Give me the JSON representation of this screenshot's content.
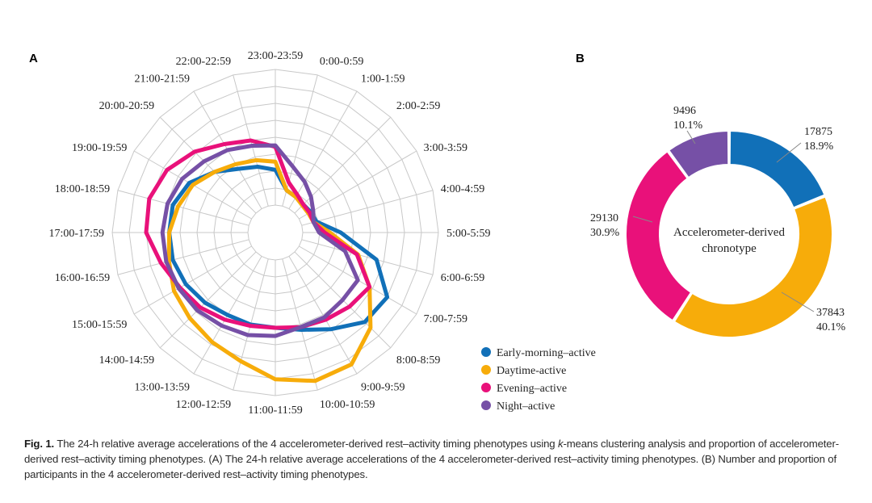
{
  "panel_a_letter": "A",
  "panel_b_letter": "B",
  "caption": {
    "label": "Fig. 1.",
    "text_part1": " The 24-h relative average accelerations of the 4 accelerometer-derived rest–activity timing phenotypes using ",
    "text_italic": "k",
    "text_part2": "-means clustering analysis and proportion of accelerometer-derived rest–activity timing phenotypes. (A) The 24-h relative average accelerations of the 4 accelerometer-derived rest–activity timing phenotypes. (B) Number and proportion of participants in the 4 accelerometer-derived rest–activity timing phenotypes."
  },
  "chart_data": [
    {
      "type": "radar",
      "categories": [
        "0:00-0:59",
        "1:00-1:59",
        "2:00-2:59",
        "3:00-3:59",
        "4:00-4:59",
        "5:00-5:59",
        "6:00-6:59",
        "7:00-7:59",
        "8:00-8:59",
        "9:00-9:59",
        "10:00-10:59",
        "11:00-11:59",
        "12:00-12:59",
        "13:00-13:59",
        "14:00-14:59",
        "15:00-15:59",
        "16:00-16:59",
        "17:00-17:59",
        "18:00-18:59",
        "19:00-19:59",
        "20:00-20:59",
        "21:00-21:59",
        "22:00-22:59",
        "23:00-23:59"
      ],
      "rlim": [
        0,
        1
      ],
      "rings": 8,
      "grid": true,
      "legend": "bottom-right",
      "series": [
        {
          "name": "Early-morning–active",
          "color": "#1170b8",
          "values": [
            0.12,
            0.1,
            0.09,
            0.1,
            0.11,
            0.28,
            0.57,
            0.75,
            0.73,
            0.62,
            0.54,
            0.5,
            0.5,
            0.5,
            0.53,
            0.56,
            0.58,
            0.58,
            0.58,
            0.53,
            0.43,
            0.34,
            0.3,
            0.26
          ]
        },
        {
          "name": "Daytime-active",
          "color": "#f7ac0a",
          "values": [
            0.12,
            0.1,
            0.08,
            0.08,
            0.09,
            0.2,
            0.43,
            0.6,
            0.79,
            0.92,
            0.93,
            0.88,
            0.78,
            0.73,
            0.69,
            0.66,
            0.61,
            0.58,
            0.54,
            0.5,
            0.43,
            0.38,
            0.35,
            0.32
          ]
        },
        {
          "name": "Evening–active",
          "color": "#e9117a",
          "values": [
            0.18,
            0.12,
            0.09,
            0.09,
            0.09,
            0.16,
            0.42,
            0.6,
            0.57,
            0.54,
            0.52,
            0.5,
            0.51,
            0.54,
            0.58,
            0.61,
            0.67,
            0.75,
            0.76,
            0.72,
            0.64,
            0.55,
            0.5,
            0.43
          ]
        },
        {
          "name": "Night–active",
          "color": "#7650a6",
          "values": [
            0.3,
            0.23,
            0.17,
            0.12,
            0.09,
            0.12,
            0.33,
            0.5,
            0.5,
            0.52,
            0.52,
            0.56,
            0.58,
            0.59,
            0.61,
            0.62,
            0.63,
            0.63,
            0.62,
            0.59,
            0.54,
            0.5,
            0.46,
            0.44
          ]
        }
      ]
    },
    {
      "type": "pie",
      "donut": true,
      "center_text": [
        "Accelerometer-derived",
        "chronotype"
      ],
      "slices": [
        {
          "name": "Early-morning–active",
          "count": "17875",
          "percent": "18.9%",
          "value": 17875,
          "color": "#1170b8"
        },
        {
          "name": "Daytime–active",
          "count": "37843",
          "percent": "40.1%",
          "value": 37843,
          "color": "#f7ac0a"
        },
        {
          "name": "Evening–active",
          "count": "29130",
          "percent": "30.9%",
          "value": 29130,
          "color": "#e9117a"
        },
        {
          "name": "Night–active",
          "count": "9496",
          "percent": "10.1%",
          "value": 9496,
          "color": "#7650a6"
        }
      ]
    }
  ]
}
